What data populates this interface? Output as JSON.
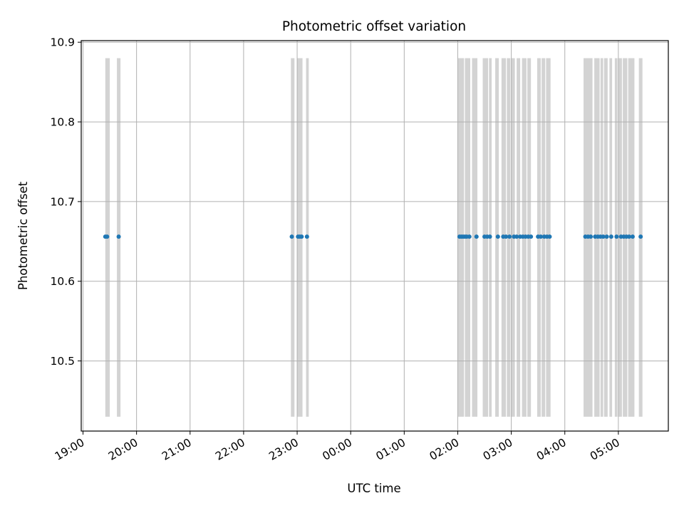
{
  "chart_data": {
    "type": "scatter",
    "title": "Photometric offset variation",
    "xlabel": "UTC time",
    "ylabel": "Photometric offset",
    "x_ticks": [
      "19:00",
      "20:00",
      "21:00",
      "22:00",
      "23:00",
      "00:00",
      "01:00",
      "02:00",
      "03:00",
      "04:00",
      "05:00"
    ],
    "y_ticks": [
      "10.5",
      "10.6",
      "10.7",
      "10.8",
      "10.9"
    ],
    "y_tick_values": [
      10.5,
      10.6,
      10.7,
      10.8,
      10.9
    ],
    "xlim": [
      "2000-01-01T18:58",
      "2000-01-02T05:56"
    ],
    "ylim": [
      10.412,
      10.902
    ],
    "grid": true,
    "series": [
      {
        "color": "#1f77b4",
        "y_value": 10.656,
        "x": [
          "2000-01-01T19:25",
          "2000-01-01T19:27",
          "2000-01-01T19:40",
          "2000-01-01T22:54",
          "2000-01-01T23:01",
          "2000-01-01T23:03",
          "2000-01-01T23:05",
          "2000-01-01T23:11",
          "2000-01-02T02:02",
          "2000-01-02T02:04",
          "2000-01-02T02:06",
          "2000-01-02T02:08",
          "2000-01-02T02:10",
          "2000-01-02T02:13",
          "2000-01-02T02:21",
          "2000-01-02T02:30",
          "2000-01-02T02:33",
          "2000-01-02T02:36",
          "2000-01-02T02:45",
          "2000-01-02T02:51",
          "2000-01-02T02:54",
          "2000-01-02T02:58",
          "2000-01-02T03:03",
          "2000-01-02T03:06",
          "2000-01-02T03:10",
          "2000-01-02T03:13",
          "2000-01-02T03:16",
          "2000-01-02T03:19",
          "2000-01-02T03:22",
          "2000-01-02T03:30",
          "2000-01-02T03:33",
          "2000-01-02T03:37",
          "2000-01-02T03:40",
          "2000-01-02T03:43",
          "2000-01-02T04:23",
          "2000-01-02T04:26",
          "2000-01-02T04:29",
          "2000-01-02T04:34",
          "2000-01-02T04:37",
          "2000-01-02T04:40",
          "2000-01-02T04:43",
          "2000-01-02T04:47",
          "2000-01-02T04:52",
          "2000-01-02T04:58",
          "2000-01-02T05:03",
          "2000-01-02T05:06",
          "2000-01-02T05:09",
          "2000-01-02T05:12",
          "2000-01-02T05:16",
          "2000-01-02T05:25"
        ]
      }
    ],
    "background_bands": {
      "color": "#d3d3d3",
      "y_range": [
        10.43,
        10.88
      ],
      "ranges": [
        [
          "2000-01-01T19:25",
          "2000-01-01T19:30"
        ],
        [
          "2000-01-01T19:38",
          "2000-01-01T19:42"
        ],
        [
          "2000-01-01T22:53",
          "2000-01-01T22:57"
        ],
        [
          "2000-01-01T23:00",
          "2000-01-01T23:06"
        ],
        [
          "2000-01-01T23:10",
          "2000-01-01T23:13"
        ],
        [
          "2000-01-02T02:00",
          "2000-01-02T02:07"
        ],
        [
          "2000-01-02T02:08",
          "2000-01-02T02:14"
        ],
        [
          "2000-01-02T02:16",
          "2000-01-02T02:22"
        ],
        [
          "2000-01-02T02:28",
          "2000-01-02T02:34"
        ],
        [
          "2000-01-02T02:35",
          "2000-01-02T02:38"
        ],
        [
          "2000-01-02T02:42",
          "2000-01-02T02:46"
        ],
        [
          "2000-01-02T02:49",
          "2000-01-02T02:54"
        ],
        [
          "2000-01-02T02:55",
          "2000-01-02T02:59"
        ],
        [
          "2000-01-02T03:00",
          "2000-01-02T03:04"
        ],
        [
          "2000-01-02T03:06",
          "2000-01-02T03:10"
        ],
        [
          "2000-01-02T03:12",
          "2000-01-02T03:17"
        ],
        [
          "2000-01-02T03:18",
          "2000-01-02T03:22"
        ],
        [
          "2000-01-02T03:29",
          "2000-01-02T03:33"
        ],
        [
          "2000-01-02T03:34",
          "2000-01-02T03:38"
        ],
        [
          "2000-01-02T03:39",
          "2000-01-02T03:44"
        ],
        [
          "2000-01-02T04:21",
          "2000-01-02T04:31"
        ],
        [
          "2000-01-02T04:33",
          "2000-01-02T04:39"
        ],
        [
          "2000-01-02T04:40",
          "2000-01-02T04:43"
        ],
        [
          "2000-01-02T04:44",
          "2000-01-02T04:48"
        ],
        [
          "2000-01-02T04:50",
          "2000-01-02T04:53"
        ],
        [
          "2000-01-02T04:56",
          "2000-01-02T04:59"
        ],
        [
          "2000-01-02T05:00",
          "2000-01-02T05:04"
        ],
        [
          "2000-01-02T05:05",
          "2000-01-02T05:10"
        ],
        [
          "2000-01-02T05:11",
          "2000-01-02T05:18"
        ],
        [
          "2000-01-02T05:23",
          "2000-01-02T05:27"
        ]
      ]
    }
  }
}
